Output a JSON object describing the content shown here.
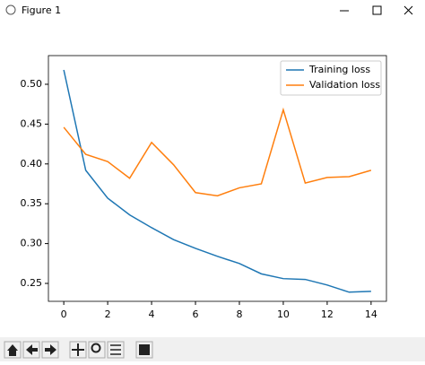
{
  "window": {
    "title": "Figure 1"
  },
  "chart_data": {
    "type": "line",
    "x": [
      0,
      1,
      2,
      3,
      4,
      5,
      6,
      7,
      8,
      9,
      10,
      11,
      12,
      13,
      14
    ],
    "series": [
      {
        "name": "Training loss",
        "color": "#1f77b4",
        "values": [
          0.518,
          0.392,
          0.357,
          0.336,
          0.32,
          0.305,
          0.294,
          0.284,
          0.275,
          0.262,
          0.256,
          0.255,
          0.248,
          0.239,
          0.24
        ]
      },
      {
        "name": "Validation loss",
        "color": "#ff7f0e",
        "values": [
          0.446,
          0.412,
          0.403,
          0.382,
          0.427,
          0.399,
          0.364,
          0.36,
          0.37,
          0.375,
          0.468,
          0.376,
          0.383,
          0.384,
          0.392
        ]
      }
    ],
    "xlim": [
      -0.7,
      14.7
    ],
    "ylim": [
      0.2275,
      0.536
    ],
    "xticks": [
      0,
      2,
      4,
      6,
      8,
      10,
      12,
      14
    ],
    "yticks": [
      {
        "value": 0.25,
        "label": "0.25"
      },
      {
        "value": 0.3,
        "label": "0.30"
      },
      {
        "value": 0.35,
        "label": "0.35"
      },
      {
        "value": 0.4,
        "label": "0.40"
      },
      {
        "value": 0.45,
        "label": "0.45"
      },
      {
        "value": 0.5,
        "label": "0.50"
      }
    ],
    "legend": "upper right",
    "grid": false
  }
}
